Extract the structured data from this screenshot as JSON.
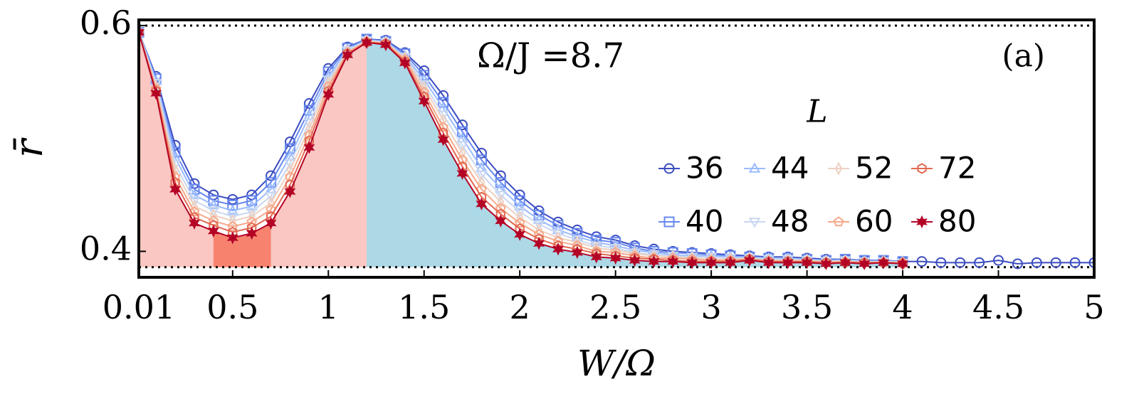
{
  "chart_data": {
    "type": "line",
    "annotation": "Ω/J =8.7",
    "panel_label": "(a)",
    "xlabel": "W/Ω",
    "ylabel": "r̄",
    "legend_title": "L",
    "x": [
      0.01,
      0.1,
      0.2,
      0.3,
      0.4,
      0.5,
      0.6,
      0.7,
      0.8,
      0.9,
      1.0,
      1.1,
      1.2,
      1.3,
      1.4,
      1.5,
      1.6,
      1.7,
      1.8,
      1.9,
      2.0,
      2.1,
      2.2,
      2.3,
      2.4,
      2.5,
      2.6,
      2.7,
      2.8,
      2.9,
      3.0,
      3.1,
      3.2,
      3.3,
      3.4,
      3.5,
      3.6,
      3.7,
      3.8,
      3.9,
      4.0,
      4.1,
      4.2,
      4.3,
      4.4,
      4.5,
      4.6,
      4.7,
      4.8,
      4.9,
      5.0
    ],
    "series": [
      {
        "name": "36",
        "color": "#3b4cc0",
        "marker": "o",
        "values": [
          0.594,
          0.555,
          0.494,
          0.46,
          0.45,
          0.446,
          0.45,
          0.467,
          0.497,
          0.531,
          0.562,
          0.581,
          0.588,
          0.587,
          0.576,
          0.56,
          0.538,
          0.512,
          0.487,
          0.467,
          0.45,
          0.436,
          0.426,
          0.419,
          0.413,
          0.41,
          0.405,
          0.402,
          0.4,
          0.399,
          0.398,
          0.397,
          0.396,
          0.395,
          0.395,
          0.394,
          0.393,
          0.393,
          0.392,
          0.392,
          0.391,
          0.391,
          0.39,
          0.39,
          0.39,
          0.392,
          0.389,
          0.39,
          0.39,
          0.39,
          0.39
        ]
      },
      {
        "name": "40",
        "color": "#6788ee",
        "marker": "s",
        "values": [
          0.594,
          0.553,
          0.488,
          0.455,
          0.445,
          0.441,
          0.445,
          0.461,
          0.491,
          0.525,
          0.559,
          0.58,
          0.588,
          0.586,
          0.575,
          0.556,
          0.532,
          0.506,
          0.481,
          0.461,
          0.445,
          0.432,
          0.423,
          0.416,
          0.41,
          0.408,
          0.403,
          0.4,
          0.399,
          0.398,
          0.397,
          0.396,
          0.395,
          0.394,
          0.394,
          0.393,
          0.392,
          0.393,
          0.392,
          0.392,
          0.391,
          null,
          null,
          null,
          null,
          null,
          null,
          null,
          null,
          null,
          null
        ]
      },
      {
        "name": "44",
        "color": "#9abbff",
        "marker": "^",
        "values": [
          0.594,
          0.551,
          0.483,
          0.45,
          0.441,
          0.436,
          0.44,
          0.455,
          0.484,
          0.52,
          0.555,
          0.579,
          0.587,
          0.586,
          0.573,
          0.552,
          0.527,
          0.5,
          0.474,
          0.456,
          0.44,
          0.428,
          0.419,
          0.413,
          0.408,
          0.405,
          0.401,
          0.399,
          0.397,
          0.396,
          0.396,
          0.395,
          0.395,
          0.394,
          0.394,
          0.393,
          0.392,
          0.392,
          0.391,
          0.391,
          0.391,
          null,
          null,
          null,
          null,
          null,
          null,
          null,
          null,
          null,
          null
        ]
      },
      {
        "name": "48",
        "color": "#c9d7f0",
        "marker": "v",
        "values": [
          0.594,
          0.549,
          0.477,
          0.445,
          0.436,
          0.431,
          0.435,
          0.449,
          0.478,
          0.514,
          0.552,
          0.578,
          0.587,
          0.585,
          0.572,
          0.548,
          0.521,
          0.494,
          0.468,
          0.45,
          0.435,
          0.424,
          0.416,
          0.41,
          0.405,
          0.403,
          0.399,
          0.397,
          0.396,
          0.395,
          0.395,
          0.394,
          0.394,
          0.393,
          0.393,
          0.392,
          0.391,
          0.392,
          0.391,
          0.391,
          0.39,
          null,
          null,
          null,
          null,
          null,
          null,
          null,
          null,
          null,
          null
        ]
      },
      {
        "name": "52",
        "color": "#edd1c2",
        "marker": "d",
        "values": [
          0.594,
          0.546,
          0.472,
          0.44,
          0.432,
          0.427,
          0.431,
          0.443,
          0.472,
          0.509,
          0.549,
          0.577,
          0.586,
          0.585,
          0.571,
          0.545,
          0.516,
          0.487,
          0.461,
          0.444,
          0.43,
          0.419,
          0.412,
          0.408,
          0.403,
          0.401,
          0.398,
          0.396,
          0.395,
          0.394,
          0.393,
          0.393,
          0.394,
          0.392,
          0.392,
          0.392,
          0.391,
          0.391,
          0.39,
          0.391,
          0.39,
          null,
          null,
          null,
          null,
          null,
          null,
          null,
          null,
          null,
          null
        ]
      },
      {
        "name": "60",
        "color": "#f7a889",
        "marker": "p",
        "values": [
          0.594,
          0.544,
          0.466,
          0.435,
          0.427,
          0.422,
          0.426,
          0.437,
          0.466,
          0.503,
          0.546,
          0.576,
          0.586,
          0.584,
          0.57,
          0.541,
          0.51,
          0.481,
          0.455,
          0.438,
          0.425,
          0.415,
          0.409,
          0.405,
          0.4,
          0.399,
          0.396,
          0.394,
          0.394,
          0.393,
          0.392,
          0.392,
          0.393,
          0.391,
          0.391,
          0.391,
          0.39,
          0.391,
          0.39,
          0.39,
          0.39,
          null,
          null,
          null,
          null,
          null,
          null,
          null,
          null,
          null,
          null
        ]
      },
      {
        "name": "72",
        "color": "#e26952",
        "marker": "h",
        "values": [
          0.594,
          0.542,
          0.461,
          0.43,
          0.423,
          0.417,
          0.421,
          0.431,
          0.459,
          0.498,
          0.542,
          0.575,
          0.585,
          0.584,
          0.568,
          0.537,
          0.505,
          0.475,
          0.448,
          0.433,
          0.42,
          0.411,
          0.405,
          0.402,
          0.398,
          0.396,
          0.394,
          0.393,
          0.392,
          0.391,
          0.391,
          0.391,
          0.393,
          0.391,
          0.391,
          0.391,
          0.39,
          0.39,
          0.39,
          0.39,
          0.389,
          null,
          null,
          null,
          null,
          null,
          null,
          null,
          null,
          null,
          null
        ]
      },
      {
        "name": "80",
        "color": "#b40426",
        "marker": "*",
        "values": [
          0.594,
          0.54,
          0.455,
          0.425,
          0.418,
          0.412,
          0.416,
          0.425,
          0.453,
          0.492,
          0.539,
          0.574,
          0.585,
          0.583,
          0.567,
          0.533,
          0.499,
          0.469,
          0.442,
          0.427,
          0.415,
          0.407,
          0.402,
          0.399,
          0.395,
          0.394,
          0.392,
          0.391,
          0.391,
          0.39,
          0.39,
          0.39,
          0.392,
          0.39,
          0.39,
          0.39,
          0.389,
          0.39,
          0.389,
          0.39,
          0.389,
          null,
          null,
          null,
          null,
          null,
          null,
          null,
          null,
          null,
          null
        ]
      }
    ],
    "regions": [
      {
        "xlim": [
          0.01,
          1.2
        ],
        "color": "#fbc7c2"
      },
      {
        "xlim": [
          0.4,
          0.7
        ],
        "color": "#f7836f"
      },
      {
        "xlim": [
          1.2,
          4.0
        ],
        "color": "#add8e6"
      }
    ],
    "hlines": [
      0.6,
      0.386
    ],
    "xlim": [
      0.01,
      5
    ],
    "ylim": [
      0.377,
      0.605
    ],
    "xticks": [
      0.01,
      0.5,
      1,
      1.5,
      2,
      2.5,
      3,
      3.5,
      4,
      4.5,
      5
    ],
    "yticks": [
      0.4,
      0.6
    ]
  }
}
